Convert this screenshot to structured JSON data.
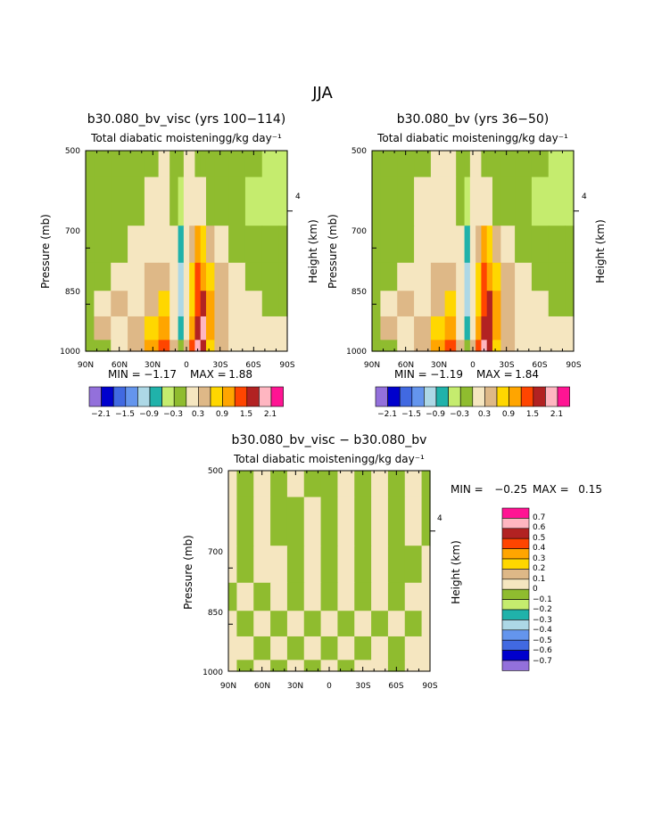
{
  "figure_title": "JJA",
  "scale": {
    "values": [
      -0.7,
      -0.6,
      -0.5,
      -0.4,
      -0.3,
      -0.2,
      -0.1,
      0,
      0.1,
      0.2,
      0.3,
      0.4,
      0.5,
      0.6,
      0.7
    ],
    "colors": [
      "#9370db",
      "#0000cd",
      "#4169e1",
      "#6495ed",
      "#add8e6",
      "#20b2aa",
      "#c5ec6e",
      "#8fbc2f",
      "#f5e6c0",
      "#deb887",
      "#ffd700",
      "#ffa500",
      "#ff4500",
      "#b22222",
      "#ffb6c1",
      "#ff1493"
    ]
  },
  "chart_data": [
    {
      "type": "heatmap",
      "title": "b30.080_bv_visc (yrs 100−114)",
      "subtitle": "Total diabatic moistening",
      "units": "g/kg day⁻¹",
      "ylabel": "Pressure (mb)",
      "y2label": "Height (km)",
      "x_ticks": [
        "90N",
        "60N",
        "30N",
        "0",
        "30S",
        "60S",
        "90S"
      ],
      "y_ticks": [
        "500",
        "700",
        "850",
        "1000"
      ],
      "y2_ticks": [
        "4"
      ],
      "min_label": "MIN =",
      "min": "−1.17",
      "max_label": "MAX =",
      "max": "1.88",
      "colorbar_labels": [
        "−2.1",
        "−1.5",
        "−0.9",
        "−0.3",
        "0.3",
        "0.9",
        "1.5",
        "2.1"
      ],
      "colorbar_levels": [
        -2.1,
        -1.8,
        -1.5,
        -1.2,
        -0.9,
        -0.6,
        -0.3,
        0,
        0.3,
        0.6,
        0.9,
        1.2,
        1.5,
        1.8,
        2.1
      ],
      "lat_deg": [
        90,
        75,
        60,
        45,
        30,
        20,
        10,
        5,
        0,
        -5,
        -10,
        -15,
        -20,
        -30,
        -45,
        -60,
        -75,
        -90
      ],
      "pressure_mb": [
        500,
        600,
        700,
        775,
        850,
        925,
        1000
      ],
      "field": [
        [
          -0.3,
          -0.3,
          -0.3,
          -0.3,
          -0.3,
          0.0,
          -0.3,
          -0.3,
          0.0,
          0.0,
          -0.3,
          -0.3,
          -0.3,
          -0.3,
          -0.3,
          -0.3,
          -0.6,
          -0.6
        ],
        [
          -0.3,
          -0.3,
          -0.3,
          -0.3,
          0.0,
          0.0,
          -0.3,
          -0.6,
          0.0,
          0.0,
          0.0,
          0.0,
          -0.3,
          -0.3,
          -0.3,
          -0.6,
          -0.6,
          -0.6
        ],
        [
          -0.3,
          -0.3,
          -0.3,
          0.0,
          0.0,
          0.0,
          0.0,
          -0.9,
          0.0,
          0.3,
          0.9,
          0.6,
          0.3,
          0.0,
          -0.3,
          -0.3,
          -0.3,
          -0.3
        ],
        [
          -0.3,
          -0.3,
          0.0,
          0.0,
          0.3,
          0.3,
          0.0,
          -1.2,
          0.0,
          0.6,
          1.2,
          0.9,
          0.6,
          0.3,
          0.0,
          -0.3,
          -0.3,
          -0.3
        ],
        [
          -0.3,
          0.0,
          0.3,
          0.0,
          0.3,
          0.6,
          0.0,
          -1.2,
          0.0,
          0.6,
          1.2,
          1.5,
          0.9,
          0.3,
          0.0,
          0.0,
          -0.3,
          -0.3
        ],
        [
          -0.3,
          0.3,
          0.0,
          0.3,
          0.6,
          0.9,
          0.0,
          -0.9,
          0.0,
          0.9,
          1.5,
          1.8,
          0.9,
          0.3,
          0.0,
          0.0,
          0.0,
          0.0
        ],
        [
          -0.3,
          -0.3,
          0.0,
          0.3,
          0.9,
          1.2,
          0.3,
          -0.3,
          0.3,
          1.2,
          1.8,
          1.5,
          0.6,
          0.3,
          0.0,
          0.0,
          0.0,
          0.0
        ]
      ]
    },
    {
      "type": "heatmap",
      "title": "b30.080_bv (yrs 36−50)",
      "subtitle": "Total diabatic moistening",
      "units": "g/kg day⁻¹",
      "ylabel": "Pressure (mb)",
      "y2label": "Height (km)",
      "x_ticks": [
        "90N",
        "60N",
        "30N",
        "0",
        "30S",
        "60S",
        "90S"
      ],
      "y_ticks": [
        "500",
        "700",
        "850",
        "1000"
      ],
      "y2_ticks": [
        "4"
      ],
      "min_label": "MIN =",
      "min": "−1.19",
      "max_label": "MAX =",
      "max": "1.84",
      "colorbar_labels": [
        "−2.1",
        "−1.5",
        "−0.9",
        "−0.3",
        "0.3",
        "0.9",
        "1.5",
        "2.1"
      ],
      "colorbar_levels": [
        -2.1,
        -1.8,
        -1.5,
        -1.2,
        -0.9,
        -0.6,
        -0.3,
        0,
        0.3,
        0.6,
        0.9,
        1.2,
        1.5,
        1.8,
        2.1
      ],
      "lat_deg": [
        90,
        75,
        60,
        45,
        30,
        20,
        10,
        5,
        0,
        -5,
        -10,
        -15,
        -20,
        -30,
        -45,
        -60,
        -75,
        -90
      ],
      "pressure_mb": [
        500,
        600,
        700,
        775,
        850,
        925,
        1000
      ],
      "field": [
        [
          -0.3,
          -0.3,
          -0.3,
          -0.3,
          0.0,
          0.0,
          -0.3,
          -0.3,
          0.0,
          0.0,
          -0.3,
          -0.3,
          -0.3,
          -0.3,
          -0.3,
          -0.3,
          -0.6,
          -0.6
        ],
        [
          -0.3,
          -0.3,
          -0.3,
          0.0,
          0.0,
          0.0,
          -0.3,
          -0.6,
          0.0,
          0.0,
          0.0,
          0.0,
          -0.3,
          -0.3,
          -0.3,
          -0.6,
          -0.6,
          -0.6
        ],
        [
          -0.3,
          -0.3,
          -0.3,
          0.0,
          0.0,
          0.0,
          0.0,
          -0.9,
          0.0,
          0.3,
          0.9,
          0.6,
          0.3,
          0.0,
          -0.3,
          -0.3,
          -0.3,
          -0.3
        ],
        [
          -0.3,
          -0.3,
          0.0,
          0.0,
          0.3,
          0.3,
          0.0,
          -1.2,
          0.0,
          0.6,
          1.2,
          0.9,
          0.6,
          0.3,
          0.0,
          -0.3,
          -0.3,
          -0.3
        ],
        [
          -0.3,
          0.0,
          0.3,
          0.0,
          0.3,
          0.6,
          0.0,
          -1.2,
          0.0,
          0.6,
          1.2,
          1.5,
          0.9,
          0.3,
          0.0,
          0.0,
          -0.3,
          -0.3
        ],
        [
          -0.3,
          0.3,
          0.0,
          0.3,
          0.6,
          0.9,
          0.0,
          -0.9,
          0.0,
          0.9,
          1.5,
          1.5,
          0.9,
          0.3,
          0.0,
          0.0,
          0.0,
          0.0
        ],
        [
          -0.3,
          -0.3,
          0.0,
          0.3,
          0.9,
          1.2,
          0.3,
          -0.3,
          0.3,
          1.2,
          1.8,
          1.5,
          0.6,
          0.3,
          0.0,
          0.0,
          0.0,
          0.0
        ]
      ]
    },
    {
      "type": "heatmap",
      "title": "b30.080_bv_visc − b30.080_bv",
      "subtitle": "Total diabatic moistening",
      "units": "g/kg day⁻¹",
      "ylabel": "Pressure (mb)",
      "y2label": "Height (km)",
      "x_ticks": [
        "90N",
        "60N",
        "30N",
        "0",
        "30S",
        "60S",
        "90S"
      ],
      "y_ticks": [
        "500",
        "700",
        "850",
        "1000"
      ],
      "y2_ticks": [
        "4"
      ],
      "min_label": "MIN =",
      "min": "−0.25",
      "max_label": "MAX =",
      "max": "0.15",
      "colorbar_labels": [
        "0.7",
        "0.6",
        "0.5",
        "0.4",
        "0.3",
        "0.2",
        "0.1",
        "0",
        "−0.1",
        "−0.2",
        "−0.3",
        "−0.4",
        "−0.5",
        "−0.6",
        "−0.7"
      ],
      "colorbar_levels": [
        -0.7,
        -0.6,
        -0.5,
        -0.4,
        -0.3,
        -0.2,
        -0.1,
        0,
        0.1,
        0.2,
        0.3,
        0.4,
        0.5,
        0.6,
        0.7
      ],
      "lat_deg": [
        90,
        75,
        60,
        45,
        30,
        15,
        0,
        -15,
        -30,
        -45,
        -60,
        -75,
        -90
      ],
      "pressure_mb": [
        500,
        600,
        700,
        775,
        850,
        925,
        1000
      ],
      "field": [
        [
          0.05,
          -0.05,
          0.05,
          -0.05,
          0.05,
          -0.05,
          -0.05,
          0.05,
          -0.05,
          0.05,
          -0.05,
          0.05,
          -0.05
        ],
        [
          0.05,
          -0.05,
          0.05,
          -0.05,
          -0.05,
          0.05,
          -0.05,
          0.05,
          -0.05,
          0.05,
          -0.05,
          0.05,
          -0.05
        ],
        [
          0.05,
          -0.05,
          0.05,
          0.05,
          -0.05,
          0.05,
          -0.05,
          0.05,
          -0.05,
          0.05,
          -0.05,
          -0.05,
          0.05
        ],
        [
          -0.05,
          0.05,
          -0.05,
          0.05,
          -0.05,
          0.05,
          -0.05,
          0.05,
          -0.05,
          0.05,
          -0.05,
          0.05,
          0.05
        ],
        [
          0.05,
          -0.05,
          0.05,
          -0.05,
          0.05,
          -0.05,
          0.05,
          -0.05,
          0.05,
          -0.05,
          0.05,
          -0.05,
          0.05
        ],
        [
          0.05,
          0.05,
          -0.05,
          0.05,
          -0.05,
          0.05,
          -0.05,
          0.05,
          -0.05,
          0.05,
          -0.05,
          0.05,
          0.05
        ],
        [
          0.05,
          -0.05,
          0.05,
          -0.05,
          0.05,
          -0.05,
          0.05,
          -0.05,
          0.05,
          0.05,
          -0.05,
          0.05,
          0.05
        ]
      ]
    }
  ]
}
